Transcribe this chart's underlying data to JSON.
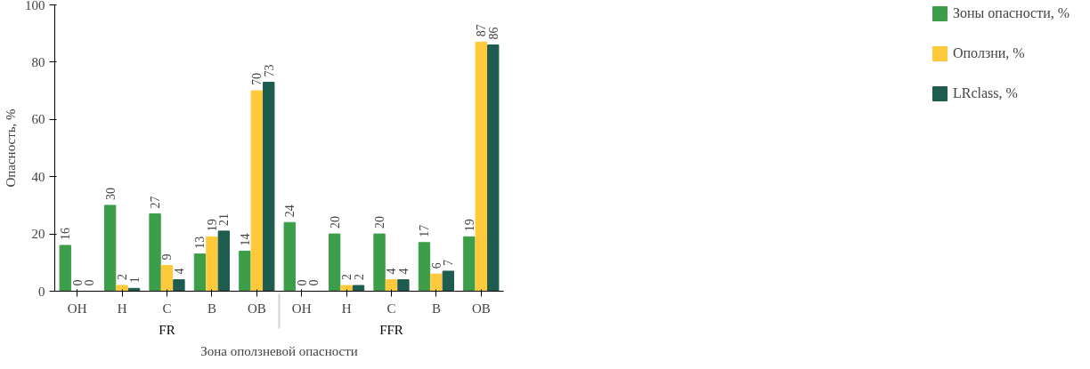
{
  "chart_data": {
    "type": "bar",
    "xlabel": "Зона оползневой опасности",
    "ylabel": "Опасность, %",
    "categories": [
      "ОН",
      "Н",
      "С",
      "В",
      "ОВ",
      "ОН",
      "Н",
      "С",
      "В",
      "ОВ"
    ],
    "annotations": [
      "FR",
      "FFR"
    ],
    "series": [
      {
        "name": "Зоны опасности, %",
        "color": "#3d9e4a",
        "values": [
          16,
          30,
          27,
          13,
          14,
          24,
          20,
          20,
          17,
          19
        ]
      },
      {
        "name": "Оползни, %",
        "color": "#ffc93c",
        "values": [
          0,
          2,
          9,
          19,
          70,
          0,
          2,
          4,
          6,
          87
        ]
      },
      {
        "name": "LRclass, %",
        "color": "#1e5c50",
        "values": [
          0,
          1,
          4,
          21,
          73,
          0,
          2,
          4,
          7,
          86
        ]
      }
    ],
    "ylim": [
      0,
      100
    ],
    "yticks": [
      0,
      20,
      40,
      60,
      80,
      100
    ],
    "data_labels": true,
    "grid": false,
    "legend": "right"
  }
}
